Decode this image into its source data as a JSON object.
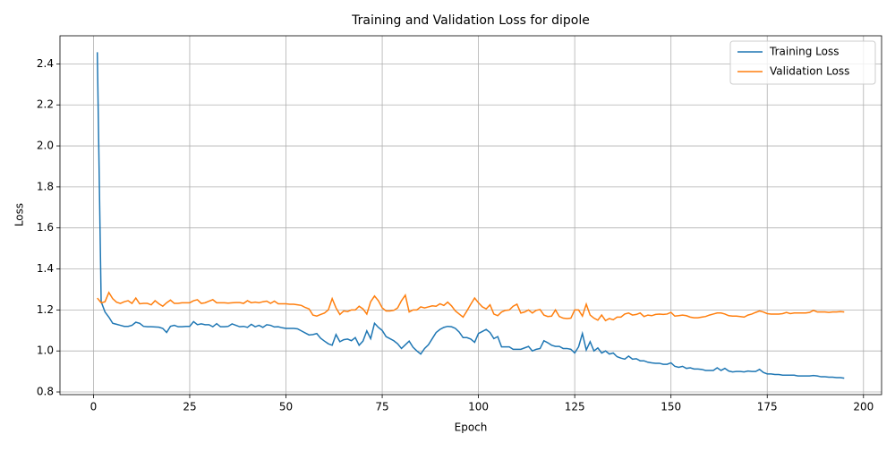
{
  "chart_data": {
    "type": "line",
    "title": "Training and Validation Loss for dipole",
    "x_label": "Epoch",
    "y_label": "Loss",
    "x": [
      1,
      2,
      3,
      4,
      5,
      6,
      7,
      8,
      9,
      10,
      11,
      12,
      13,
      14,
      15,
      16,
      17,
      18,
      19,
      20,
      21,
      22,
      23,
      24,
      25,
      26,
      27,
      28,
      29,
      30,
      31,
      32,
      33,
      34,
      35,
      36,
      37,
      38,
      39,
      40,
      41,
      42,
      43,
      44,
      45,
      46,
      47,
      48,
      49,
      50,
      51,
      52,
      53,
      54,
      55,
      56,
      57,
      58,
      59,
      60,
      61,
      62,
      63,
      64,
      65,
      66,
      67,
      68,
      69,
      70,
      71,
      72,
      73,
      74,
      75,
      76,
      77,
      78,
      79,
      80,
      81,
      82,
      83,
      84,
      85,
      86,
      87,
      88,
      89,
      90,
      91,
      92,
      93,
      94,
      95,
      96,
      97,
      98,
      99,
      100,
      101,
      102,
      103,
      104,
      105,
      106,
      107,
      108,
      109,
      110,
      111,
      112,
      113,
      114,
      115,
      116,
      117,
      118,
      119,
      120,
      121,
      122,
      123,
      124,
      125,
      126,
      127,
      128,
      129,
      130,
      131,
      132,
      133,
      134,
      135,
      136,
      137,
      138,
      139,
      140,
      141,
      142,
      143,
      144,
      145,
      146,
      147,
      148,
      149,
      150,
      151,
      152,
      153,
      154,
      155,
      156,
      157,
      158,
      159,
      160,
      161,
      162,
      163,
      164,
      165,
      166,
      167,
      168,
      169,
      170,
      171,
      172,
      173,
      174,
      175,
      176,
      177,
      178,
      179,
      180,
      181,
      182,
      183,
      184,
      185,
      186,
      187,
      188,
      189,
      190,
      191,
      192,
      193,
      194,
      195
    ],
    "series": [
      {
        "name": "Training Loss",
        "color": "#1f77b4",
        "values": [
          2.457,
          1.24,
          1.19,
          1.165,
          1.135,
          1.13,
          1.125,
          1.12,
          1.12,
          1.125,
          1.14,
          1.135,
          1.12,
          1.118,
          1.118,
          1.117,
          1.116,
          1.11,
          1.09,
          1.12,
          1.125,
          1.118,
          1.118,
          1.12,
          1.12,
          1.143,
          1.128,
          1.132,
          1.128,
          1.128,
          1.118,
          1.133,
          1.118,
          1.118,
          1.12,
          1.132,
          1.125,
          1.118,
          1.12,
          1.115,
          1.13,
          1.118,
          1.125,
          1.115,
          1.128,
          1.125,
          1.117,
          1.118,
          1.113,
          1.11,
          1.11,
          1.11,
          1.108,
          1.098,
          1.088,
          1.078,
          1.08,
          1.085,
          1.062,
          1.048,
          1.035,
          1.028,
          1.08,
          1.045,
          1.055,
          1.058,
          1.05,
          1.065,
          1.028,
          1.048,
          1.098,
          1.06,
          1.135,
          1.115,
          1.1,
          1.07,
          1.06,
          1.05,
          1.035,
          1.012,
          1.03,
          1.048,
          1.018,
          1.0,
          0.985,
          1.012,
          1.03,
          1.06,
          1.09,
          1.105,
          1.115,
          1.12,
          1.118,
          1.11,
          1.092,
          1.065,
          1.065,
          1.058,
          1.042,
          1.085,
          1.095,
          1.105,
          1.09,
          1.06,
          1.07,
          1.02,
          1.02,
          1.02,
          1.008,
          1.008,
          1.008,
          1.015,
          1.022,
          1.0,
          1.008,
          1.012,
          1.05,
          1.04,
          1.028,
          1.022,
          1.022,
          1.012,
          1.012,
          1.008,
          0.99,
          1.02,
          1.085,
          1.005,
          1.045,
          1.0,
          1.015,
          0.99,
          1.0,
          0.985,
          0.99,
          0.972,
          0.965,
          0.96,
          0.975,
          0.96,
          0.962,
          0.952,
          0.952,
          0.945,
          0.942,
          0.94,
          0.94,
          0.935,
          0.935,
          0.942,
          0.925,
          0.92,
          0.925,
          0.915,
          0.918,
          0.912,
          0.912,
          0.91,
          0.905,
          0.905,
          0.905,
          0.918,
          0.905,
          0.915,
          0.902,
          0.898,
          0.9,
          0.9,
          0.898,
          0.902,
          0.9,
          0.9,
          0.91,
          0.895,
          0.888,
          0.888,
          0.885,
          0.885,
          0.882,
          0.882,
          0.882,
          0.882,
          0.878,
          0.878,
          0.878,
          0.878,
          0.88,
          0.878,
          0.874,
          0.874,
          0.872,
          0.872,
          0.87,
          0.87,
          0.867
        ]
      },
      {
        "name": "Validation Loss",
        "color": "#ff7f0e",
        "values": [
          1.258,
          1.235,
          1.24,
          1.285,
          1.255,
          1.238,
          1.232,
          1.24,
          1.245,
          1.232,
          1.258,
          1.23,
          1.232,
          1.232,
          1.225,
          1.245,
          1.23,
          1.218,
          1.235,
          1.248,
          1.232,
          1.232,
          1.235,
          1.235,
          1.235,
          1.245,
          1.25,
          1.232,
          1.235,
          1.243,
          1.25,
          1.235,
          1.235,
          1.235,
          1.233,
          1.235,
          1.236,
          1.236,
          1.232,
          1.245,
          1.235,
          1.238,
          1.235,
          1.24,
          1.243,
          1.232,
          1.243,
          1.23,
          1.23,
          1.23,
          1.228,
          1.228,
          1.225,
          1.222,
          1.212,
          1.205,
          1.175,
          1.17,
          1.178,
          1.185,
          1.2,
          1.255,
          1.21,
          1.178,
          1.195,
          1.192,
          1.2,
          1.2,
          1.218,
          1.205,
          1.18,
          1.24,
          1.268,
          1.245,
          1.21,
          1.195,
          1.195,
          1.198,
          1.21,
          1.245,
          1.272,
          1.19,
          1.2,
          1.2,
          1.215,
          1.21,
          1.215,
          1.22,
          1.218,
          1.23,
          1.222,
          1.238,
          1.22,
          1.195,
          1.18,
          1.165,
          1.195,
          1.228,
          1.258,
          1.235,
          1.215,
          1.205,
          1.225,
          1.18,
          1.172,
          1.19,
          1.198,
          1.2,
          1.218,
          1.228,
          1.185,
          1.19,
          1.2,
          1.185,
          1.198,
          1.202,
          1.175,
          1.168,
          1.17,
          1.2,
          1.168,
          1.16,
          1.158,
          1.16,
          1.2,
          1.2,
          1.17,
          1.228,
          1.175,
          1.16,
          1.15,
          1.175,
          1.148,
          1.158,
          1.152,
          1.165,
          1.165,
          1.18,
          1.185,
          1.175,
          1.178,
          1.185,
          1.168,
          1.175,
          1.172,
          1.178,
          1.18,
          1.178,
          1.18,
          1.188,
          1.17,
          1.172,
          1.175,
          1.172,
          1.165,
          1.162,
          1.162,
          1.165,
          1.168,
          1.175,
          1.18,
          1.185,
          1.185,
          1.18,
          1.172,
          1.17,
          1.17,
          1.168,
          1.165,
          1.175,
          1.18,
          1.188,
          1.195,
          1.19,
          1.182,
          1.18,
          1.18,
          1.18,
          1.182,
          1.188,
          1.182,
          1.185,
          1.185,
          1.185,
          1.185,
          1.188,
          1.198,
          1.19,
          1.19,
          1.19,
          1.188,
          1.19,
          1.19,
          1.192,
          1.19
        ]
      }
    ],
    "xlim": [
      -8.7,
      204.7
    ],
    "ylim": [
      0.787,
      2.537
    ],
    "xticks": [
      0,
      25,
      50,
      75,
      100,
      125,
      150,
      175,
      200
    ],
    "yticks": [
      0.8,
      {
        "value": 1,
        "label": "1.0"
      },
      1.2,
      1.4,
      1.6,
      1.8,
      {
        "value": 2,
        "label": "2.0"
      },
      2.2,
      2.4
    ],
    "grid": true,
    "legend": "upper-right"
  }
}
